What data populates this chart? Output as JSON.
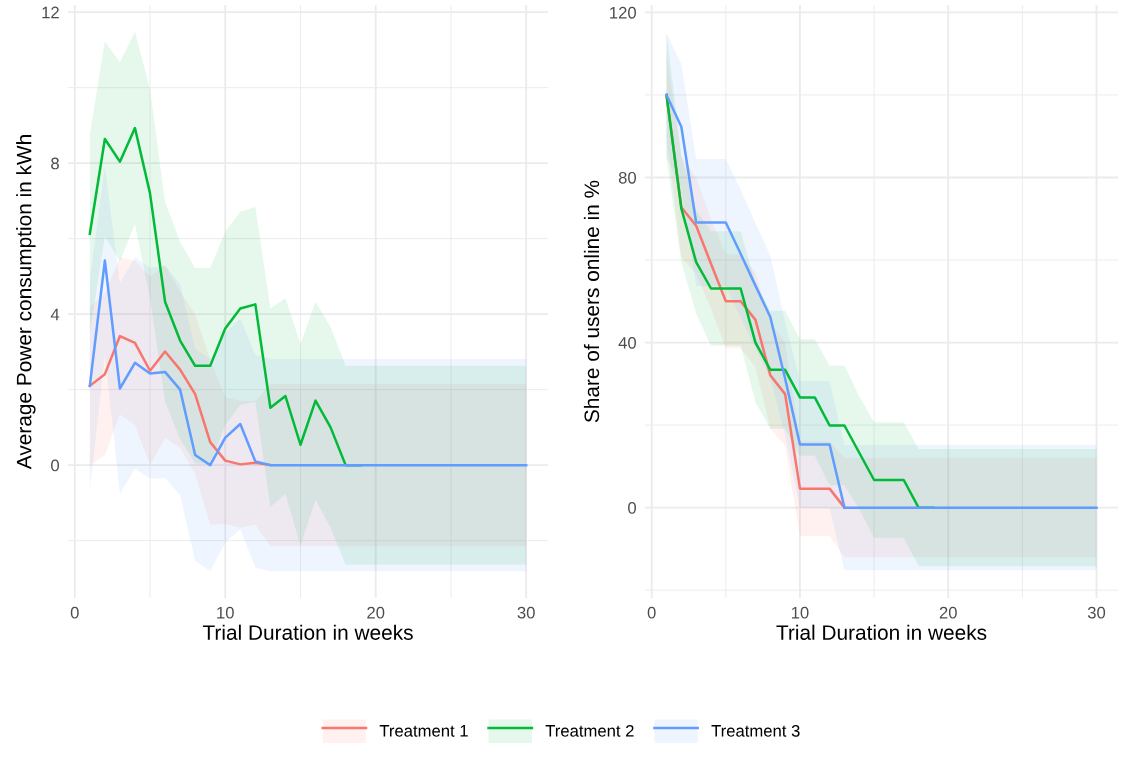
{
  "chart_data": [
    {
      "type": "line",
      "xlabel": "Trial Duration in weeks",
      "ylabel": "Average Power consumption in kWh",
      "grid": true,
      "legend": "bottom",
      "x": [
        1,
        2,
        3,
        4,
        5,
        6,
        7,
        8,
        9,
        10,
        11,
        12,
        13,
        14,
        15,
        16,
        17,
        18,
        19,
        20,
        21,
        22,
        23,
        24,
        25,
        26,
        27,
        28,
        29,
        30
      ],
      "xlim": [
        -0.45,
        31.45
      ],
      "xticks": [
        0,
        {
          "value": 5,
          "label": null
        },
        10,
        {
          "value": 15,
          "label": null
        },
        20,
        {
          "value": 25,
          "label": null
        },
        30
      ],
      "ylim": [
        -3.52,
        12.19
      ],
      "yticks": [
        {
          "value": -2,
          "label": null
        },
        0,
        {
          "value": 2,
          "label": null
        },
        4,
        {
          "value": 6,
          "label": null
        },
        8,
        {
          "value": 10,
          "label": null
        },
        12
      ],
      "series": [
        {
          "name": "Treatment 1",
          "color": "#F8766D",
          "values": [
            2.1,
            2.41,
            3.42,
            3.24,
            2.5,
            3.01,
            2.53,
            1.88,
            0.61,
            0.12,
            0.02,
            0.06,
            0,
            null,
            null,
            null,
            null,
            null,
            null,
            null,
            null,
            null,
            null,
            null,
            null,
            null,
            null,
            null,
            null,
            null
          ],
          "upper": [
            4.2,
            4.55,
            5.5,
            5.42,
            5.0,
            5.3,
            4.6,
            4.0,
            2.8,
            1.8,
            1.7,
            1.7,
            2.15,
            2.15,
            2.15,
            2.15,
            2.15,
            2.15,
            2.15,
            2.15,
            2.15,
            2.15,
            2.15,
            2.15,
            2.15,
            2.15,
            2.15,
            2.15,
            2.15,
            2.15
          ],
          "lower": [
            0.0,
            0.27,
            1.34,
            1.06,
            0.0,
            0.72,
            0.46,
            -0.24,
            -1.58,
            -1.56,
            -1.66,
            -1.58,
            -2.15,
            -2.15,
            -2.15,
            -2.15,
            -2.15,
            -2.15,
            -2.15,
            -2.15,
            -2.15,
            -2.15,
            -2.15,
            -2.15,
            -2.15,
            -2.15,
            -2.15,
            -2.15,
            -2.15,
            -2.15
          ]
        },
        {
          "name": "Treatment 2",
          "color": "#00BA38",
          "values": [
            6.13,
            8.64,
            8.04,
            8.93,
            7.2,
            4.33,
            3.3,
            2.63,
            2.63,
            3.62,
            4.15,
            4.26,
            1.52,
            1.83,
            0.54,
            1.71,
            1.0,
            0,
            0,
            null,
            null,
            null,
            null,
            null,
            null,
            null,
            null,
            null,
            null,
            null
          ],
          "upper": [
            8.76,
            11.22,
            10.67,
            11.48,
            9.96,
            6.98,
            5.91,
            5.22,
            5.22,
            6.18,
            6.71,
            6.84,
            4.15,
            4.42,
            3.21,
            4.33,
            3.66,
            2.63,
            2.63,
            2.63,
            2.63,
            2.63,
            2.63,
            2.63,
            2.63,
            2.63,
            2.63,
            2.63,
            2.63,
            2.63
          ],
          "lower": [
            3.5,
            6.06,
            5.41,
            6.38,
            4.44,
            1.68,
            0.69,
            0.04,
            0.04,
            1.06,
            1.59,
            1.68,
            -1.11,
            -0.76,
            -2.13,
            -0.91,
            -1.66,
            -2.63,
            -2.63,
            -2.63,
            -2.63,
            -2.63,
            -2.63,
            -2.63,
            -2.63,
            -2.63,
            -2.63,
            -2.63,
            -2.63,
            -2.63
          ]
        },
        {
          "name": "Treatment 3",
          "color": "#619CFF",
          "values": [
            2.1,
            5.42,
            2.03,
            2.71,
            2.43,
            2.47,
            2.0,
            0.27,
            0,
            0.73,
            1.09,
            0.1,
            0,
            0,
            0,
            0,
            0,
            0,
            0,
            0,
            0,
            0,
            0,
            0,
            0,
            0,
            0,
            0,
            0,
            0
          ],
          "upper": [
            4.91,
            7.9,
            4.82,
            5.51,
            5.22,
            5.28,
            4.8,
            3.08,
            2.81,
            3.51,
            3.88,
            2.92,
            2.81,
            2.81,
            2.81,
            2.81,
            2.81,
            2.81,
            2.81,
            2.81,
            2.81,
            2.81,
            2.81,
            2.81,
            2.81,
            2.81,
            2.81,
            2.81,
            2.81,
            2.81
          ],
          "lower": [
            -0.71,
            2.94,
            -0.76,
            -0.09,
            -0.36,
            -0.34,
            -0.8,
            -2.54,
            -2.81,
            -2.05,
            -1.7,
            -2.72,
            -2.81,
            -2.81,
            -2.81,
            -2.81,
            -2.81,
            -2.81,
            -2.81,
            -2.81,
            -2.81,
            -2.81,
            -2.81,
            -2.81,
            -2.81,
            -2.81,
            -2.81,
            -2.81,
            -2.81,
            -2.81
          ]
        }
      ]
    },
    {
      "type": "line",
      "xlabel": "Trial Duration in weeks",
      "ylabel": "Share of users online in %",
      "grid": true,
      "x": [
        1,
        2,
        3,
        4,
        5,
        6,
        7,
        8,
        9,
        10,
        11,
        12,
        13,
        14,
        15,
        16,
        17,
        18,
        19,
        20,
        21,
        22,
        23,
        24,
        25,
        26,
        27,
        28,
        29,
        30
      ],
      "xlim": [
        -0.45,
        31.45
      ],
      "xticks": [
        0,
        {
          "value": 5,
          "label": null
        },
        10,
        {
          "value": 15,
          "label": null
        },
        20,
        {
          "value": 25,
          "label": null
        },
        30
      ],
      "ylim": [
        -21.9,
        121.8
      ],
      "yticks": [
        {
          "value": -20,
          "label": null
        },
        0,
        {
          "value": 20,
          "label": null
        },
        40,
        {
          "value": 60,
          "label": null
        },
        80,
        {
          "value": 100,
          "label": null
        },
        120
      ],
      "series": [
        {
          "color": "#F8766D",
          "values": [
            100,
            72.8,
            68.3,
            59.1,
            50,
            50,
            45.5,
            32.1,
            27.5,
            4.6,
            4.6,
            4.6,
            0,
            null,
            null,
            null,
            null,
            null,
            null,
            null,
            null,
            null,
            null,
            null,
            null,
            null,
            null,
            null,
            null,
            null
          ],
          "upper": [
            110,
            85,
            80,
            70,
            61.4,
            61.4,
            57,
            45,
            40,
            16.1,
            16.1,
            16.1,
            12,
            12,
            12,
            12,
            12,
            12,
            12,
            12,
            12,
            12,
            12,
            12,
            12,
            12,
            12,
            12,
            12,
            12
          ],
          "lower": [
            90,
            60.6,
            56.6,
            48.2,
            38.6,
            38.6,
            34,
            19.2,
            15,
            -6.9,
            -6.9,
            -6.9,
            -12,
            -12,
            -12,
            -12,
            -12,
            -12,
            -12,
            -12,
            -12,
            -12,
            -12,
            -12,
            -12,
            -12,
            -12,
            -12,
            -12,
            -12
          ]
        },
        {
          "color": "#00BA38",
          "values": [
            100,
            72.5,
            59.5,
            53.1,
            53.1,
            53.1,
            40,
            33.4,
            33.4,
            26.7,
            26.7,
            19.9,
            19.9,
            13.3,
            6.7,
            6.7,
            6.7,
            0,
            0,
            null,
            null,
            null,
            null,
            null,
            null,
            null,
            null,
            null,
            null,
            null
          ],
          "upper": [
            115.3,
            85.5,
            72,
            67,
            67,
            67,
            54.4,
            47.7,
            47.7,
            40.8,
            40.8,
            34.4,
            34.4,
            27,
            20.7,
            20.7,
            20.7,
            14.2,
            14.2,
            14.2,
            14.2,
            14.2,
            14.2,
            14.2,
            14.2,
            14.2,
            14.2,
            14.2,
            14.2,
            14.2
          ],
          "lower": [
            84.7,
            59.5,
            47,
            39.2,
            39.2,
            39.2,
            25.6,
            19.1,
            19.1,
            12.6,
            12.6,
            5.4,
            5.4,
            -0.4,
            -7.3,
            -7.3,
            -7.3,
            -14.2,
            -14.2,
            -14.2,
            -14.2,
            -14.2,
            -14.2,
            -14.2,
            -14.2,
            -14.2,
            -14.2,
            -14.2,
            -14.2,
            -14.2
          ]
        },
        {
          "color": "#619CFF",
          "values": [
            100,
            92.3,
            69.1,
            69.1,
            69.1,
            61.5,
            53.8,
            46.2,
            31.3,
            15.3,
            15.3,
            15.3,
            0,
            0,
            0,
            0,
            0,
            0,
            0,
            0,
            0,
            0,
            0,
            0,
            0,
            0,
            0,
            0,
            0,
            0
          ],
          "upper": [
            115,
            107.5,
            84.5,
            84.5,
            84.5,
            77,
            69,
            61.1,
            45,
            30.7,
            30.7,
            30.7,
            15.2,
            15.2,
            15.2,
            15.2,
            15.2,
            15.2,
            15.2,
            15.2,
            15.2,
            15.2,
            15.2,
            15.2,
            15.2,
            15.2,
            15.2,
            15.2,
            15.2,
            15.2
          ],
          "lower": [
            85,
            77.1,
            53.7,
            53.7,
            53.7,
            46,
            38.6,
            31.3,
            17.6,
            -0.1,
            -0.1,
            -0.1,
            -15.2,
            -15.2,
            -15.2,
            -15.2,
            -15.2,
            -15.2,
            -15.2,
            -15.2,
            -15.2,
            -15.2,
            -15.2,
            -15.2,
            -15.2,
            -15.2,
            -15.2,
            -15.2,
            -15.2,
            -15.2
          ]
        }
      ]
    }
  ]
}
